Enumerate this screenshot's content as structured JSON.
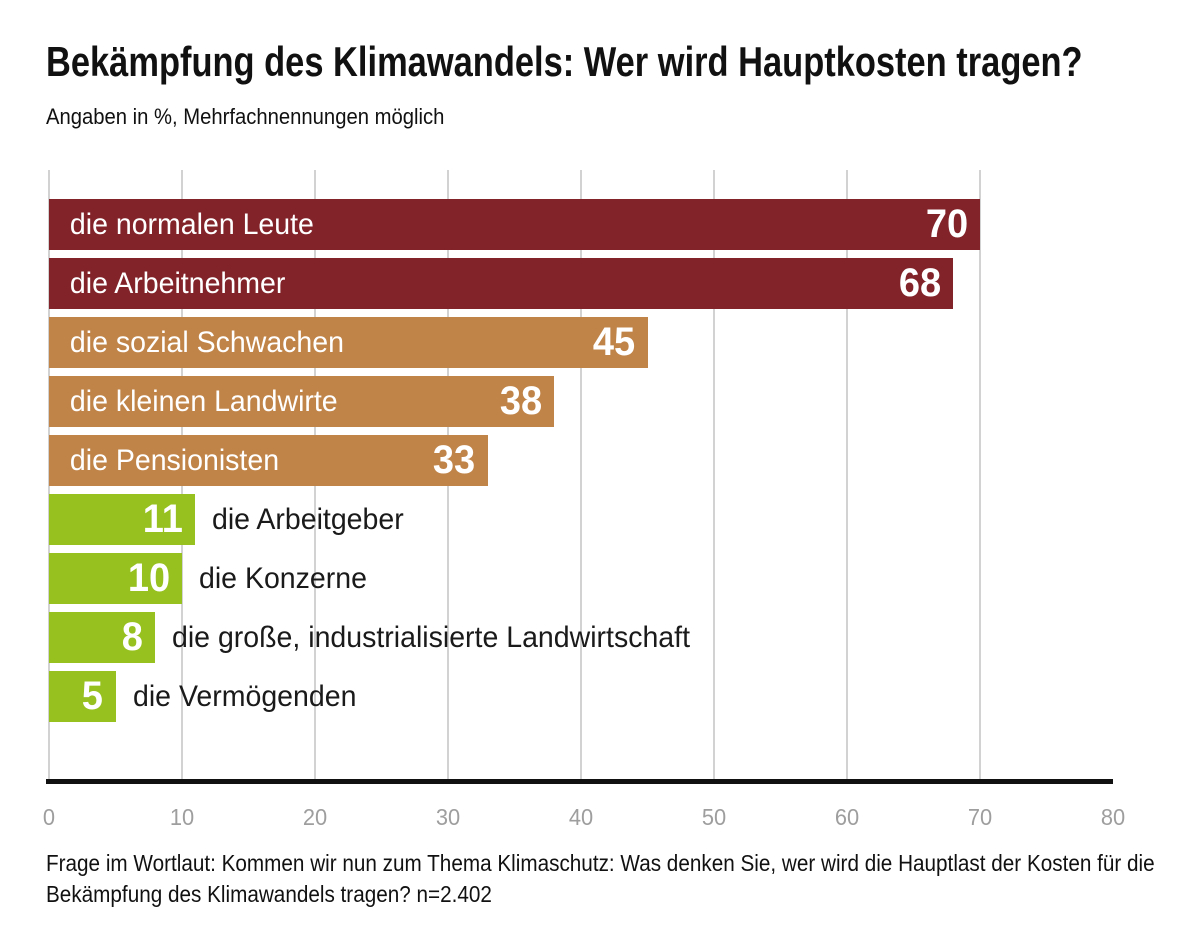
{
  "header": {
    "title": "Bekämpfung des Klimawandels: Wer wird Hauptkosten tragen?",
    "subtitle": "Angaben in %, Mehrfachnennungen möglich"
  },
  "chart_data": {
    "type": "bar",
    "orientation": "horizontal",
    "title": "Bekämpfung des Klimawandels: Wer wird Hauptkosten tragen?",
    "subtitle": "Angaben in %, Mehrfachnennungen möglich",
    "xlabel": "",
    "ylabel": "",
    "xlim": [
      0,
      80
    ],
    "xticks": [
      0,
      10,
      20,
      30,
      40,
      50,
      60,
      70,
      80
    ],
    "gridline_ticks": [
      0,
      10,
      20,
      30,
      40,
      50,
      60,
      70
    ],
    "grid": true,
    "legend": "none",
    "categories": [
      "die normalen Leute",
      "die Arbeitnehmer",
      "die sozial Schwachen",
      "die kleinen Landwirte",
      "die Pensionisten",
      "die Arbeitgeber",
      "die Konzerne",
      "die große, industrialisierte Landwirtschaft",
      "die Vermögenden"
    ],
    "values": [
      70,
      68,
      45,
      38,
      33,
      11,
      10,
      8,
      5
    ],
    "bars": [
      {
        "label": "die normalen Leute",
        "value": 70,
        "color": "#82232A",
        "label_placement": "inside"
      },
      {
        "label": "die Arbeitnehmer",
        "value": 68,
        "color": "#82232A",
        "label_placement": "inside"
      },
      {
        "label": "die sozial Schwachen",
        "value": 45,
        "color": "#C08449",
        "label_placement": "inside"
      },
      {
        "label": "die kleinen Landwirte",
        "value": 38,
        "color": "#C08449",
        "label_placement": "inside"
      },
      {
        "label": "die Pensionisten",
        "value": 33,
        "color": "#C08449",
        "label_placement": "inside"
      },
      {
        "label": "die Arbeitgeber",
        "value": 11,
        "color": "#96C11F",
        "label_placement": "outside"
      },
      {
        "label": "die Konzerne",
        "value": 10,
        "color": "#96C11F",
        "label_placement": "outside"
      },
      {
        "label": "die große, industrialisierte Landwirtschaft",
        "value": 8,
        "color": "#96C11F",
        "label_placement": "outside"
      },
      {
        "label": "die Vermögenden",
        "value": 5,
        "color": "#96C11F",
        "label_placement": "outside"
      }
    ],
    "colors": {
      "high": "#82232A",
      "mid": "#C08449",
      "low": "#96C11F",
      "gridline": "#D2D2D2",
      "axis": "#111111",
      "tick_text": "#9E9E9E",
      "bar_text": "#FFFFFF",
      "outside_label_text": "#1A1A1A"
    }
  },
  "footer": {
    "text": "Frage im Wortlaut: Kommen wir nun zum Thema Klimaschutz: Was denken Sie, wer wird die Hauptlast der Kosten für die Bekämpfung des Klimawandels tragen? n=2.402"
  }
}
